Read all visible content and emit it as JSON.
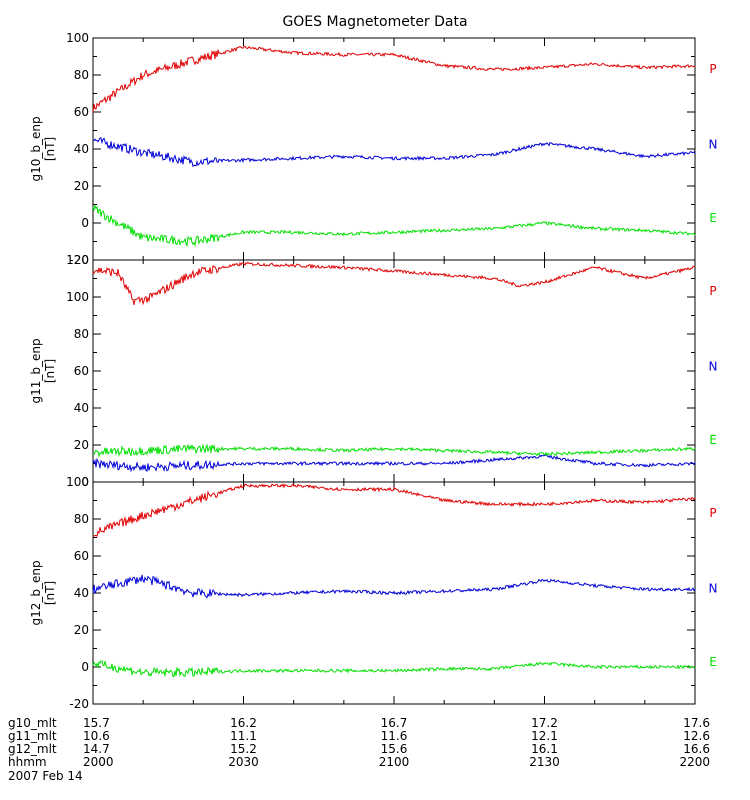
{
  "title": "GOES Magnetometer Data",
  "colors": {
    "P": "#e00000",
    "N": "#0000d8",
    "E": "#00e000",
    "bg": "#ffffff",
    "axis": "#000000"
  },
  "chart_data": [
    {
      "type": "line",
      "ylabel": "g10_b_enp",
      "unit": "[nT]",
      "ylim": [
        -20,
        100
      ],
      "yticks": [
        -20,
        0,
        20,
        40,
        60,
        80,
        100
      ],
      "series": [
        {
          "name": "P",
          "x": [
            "2000",
            "2010",
            "2020",
            "2030",
            "2040",
            "2050",
            "2100",
            "2110",
            "2120",
            "2130",
            "2140",
            "2150",
            "2200"
          ],
          "values": [
            62,
            80,
            88,
            95,
            92,
            91,
            91,
            85,
            83,
            84,
            86,
            84,
            85
          ]
        },
        {
          "name": "N",
          "x": [
            "2000",
            "2010",
            "2020",
            "2030",
            "2040",
            "2050",
            "2100",
            "2110",
            "2120",
            "2130",
            "2140",
            "2150",
            "2200"
          ],
          "values": [
            45,
            38,
            33,
            34,
            35,
            36,
            35,
            35,
            37,
            43,
            40,
            36,
            38
          ]
        },
        {
          "name": "E",
          "x": [
            "2000",
            "2010",
            "2020",
            "2030",
            "2040",
            "2050",
            "2100",
            "2110",
            "2120",
            "2130",
            "2140",
            "2150",
            "2200"
          ],
          "values": [
            8,
            -8,
            -10,
            -5,
            -5,
            -6,
            -5,
            -4,
            -3,
            0,
            -3,
            -4,
            -6
          ]
        }
      ]
    },
    {
      "type": "line",
      "ylabel": "g11_b_enp",
      "unit": "[nT]",
      "ylim": [
        0,
        120
      ],
      "yticks": [
        0,
        20,
        40,
        60,
        80,
        100,
        120
      ],
      "series": [
        {
          "name": "P",
          "x": [
            "2000",
            "2005",
            "2008",
            "2011",
            "2020",
            "2030",
            "2040",
            "2050",
            "2100",
            "2110",
            "2120",
            "2125",
            "2130",
            "2140",
            "2150",
            "2200"
          ],
          "values": [
            115,
            113,
            98,
            99,
            113,
            118,
            117,
            116,
            114,
            112,
            110,
            106,
            108,
            116,
            110,
            116
          ]
        },
        {
          "name": "N",
          "x": [
            "2000",
            "2010",
            "2020",
            "2030",
            "2040",
            "2050",
            "2100",
            "2110",
            "2120",
            "2130",
            "2140",
            "2150",
            "2200"
          ],
          "values": [
            10,
            8,
            9,
            10,
            10,
            10,
            10,
            10,
            12,
            14,
            10,
            9,
            10
          ]
        },
        {
          "name": "E",
          "x": [
            "2000",
            "2010",
            "2020",
            "2030",
            "2040",
            "2050",
            "2100",
            "2110",
            "2120",
            "2130",
            "2140",
            "2150",
            "2200"
          ],
          "values": [
            16,
            17,
            18,
            18,
            18,
            17,
            18,
            17,
            16,
            15,
            16,
            17,
            18
          ]
        }
      ]
    },
    {
      "type": "line",
      "ylabel": "g12_b_enp",
      "unit": "[nT]",
      "ylim": [
        -20,
        100
      ],
      "yticks": [
        -20,
        0,
        20,
        40,
        60,
        80,
        100
      ],
      "series": [
        {
          "name": "P",
          "x": [
            "2000",
            "2010",
            "2020",
            "2030",
            "2040",
            "2050",
            "2100",
            "2110",
            "2120",
            "2130",
            "2140",
            "2150",
            "2200"
          ],
          "values": [
            72,
            82,
            90,
            98,
            98,
            96,
            96,
            90,
            88,
            88,
            90,
            89,
            91
          ]
        },
        {
          "name": "N",
          "x": [
            "2000",
            "2010",
            "2020",
            "2030",
            "2040",
            "2050",
            "2100",
            "2110",
            "2120",
            "2130",
            "2140",
            "2150",
            "2200"
          ],
          "values": [
            42,
            48,
            40,
            39,
            40,
            41,
            40,
            41,
            42,
            47,
            44,
            42,
            42
          ]
        },
        {
          "name": "E",
          "x": [
            "2000",
            "2010",
            "2020",
            "2030",
            "2040",
            "2050",
            "2100",
            "2110",
            "2120",
            "2130",
            "2140",
            "2150",
            "2200"
          ],
          "values": [
            2,
            -3,
            -3,
            -2,
            -2,
            -2,
            -2,
            -1,
            -1,
            2,
            0,
            0,
            0
          ]
        }
      ]
    }
  ],
  "xaxis": {
    "row_labels": [
      "g10_mlt",
      "g11_mlt",
      "g12_mlt",
      "hhmm"
    ],
    "ticks": [
      {
        "hhmm": "2000",
        "g10": "15.7",
        "g11": "10.6",
        "g12": "14.7"
      },
      {
        "hhmm": "2030",
        "g10": "16.2",
        "g11": "11.1",
        "g12": "15.2"
      },
      {
        "hhmm": "2100",
        "g10": "16.7",
        "g11": "11.6",
        "g12": "15.6"
      },
      {
        "hhmm": "2130",
        "g10": "17.2",
        "g11": "12.1",
        "g12": "16.1"
      },
      {
        "hhmm": "2200",
        "g10": "17.6",
        "g11": "12.6",
        "g12": "16.6"
      }
    ],
    "date": "2007 Feb 14"
  }
}
